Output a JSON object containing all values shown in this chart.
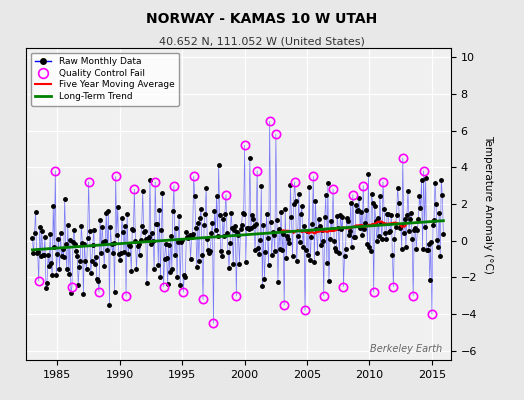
{
  "title": "NORWAY - KAMAS 10 W UTAH",
  "subtitle": "40.652 N, 111.052 W (United States)",
  "ylabel": "Temperature Anomaly (°C)",
  "xlim": [
    1982.5,
    2016.5
  ],
  "ylim": [
    -6.5,
    10.5
  ],
  "yticks": [
    -6,
    -4,
    -2,
    0,
    2,
    4,
    6,
    8,
    10
  ],
  "xticks": [
    1985,
    1990,
    1995,
    2000,
    2005,
    2010,
    2015
  ],
  "bg_color": "#e8e8e8",
  "watermark": "Berkeley Earth"
}
